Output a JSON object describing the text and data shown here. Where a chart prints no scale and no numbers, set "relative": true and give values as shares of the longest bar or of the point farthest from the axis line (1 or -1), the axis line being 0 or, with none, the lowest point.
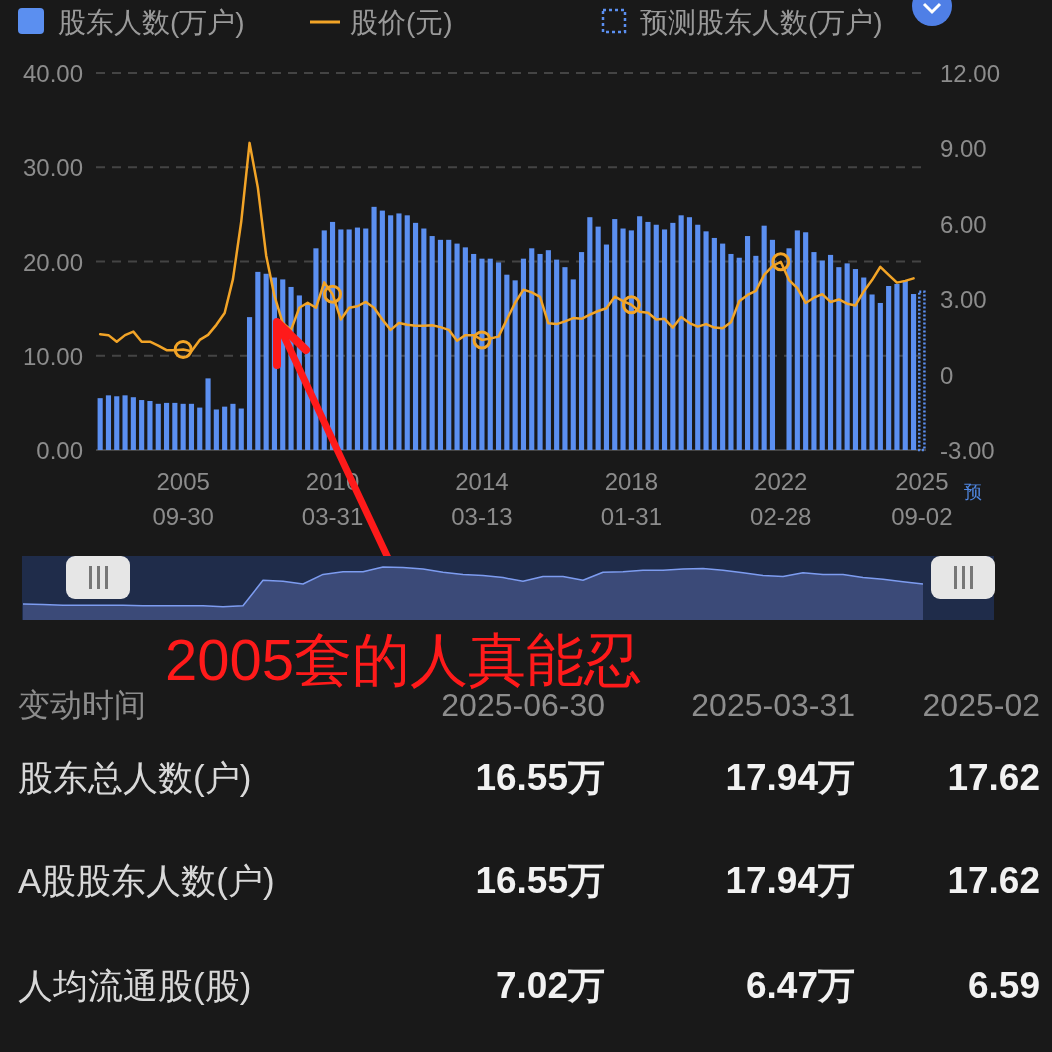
{
  "chart_data": [
    {
      "type": "bar",
      "legend": "top",
      "grid": "y",
      "categories": [
        null,
        null,
        null,
        null,
        null,
        null,
        null,
        null,
        null,
        null,
        "2005\n09-30",
        null,
        null,
        null,
        null,
        null,
        null,
        null,
        null,
        null,
        null,
        null,
        null,
        null,
        null,
        null,
        null,
        null,
        "2010\n03-31",
        null,
        null,
        null,
        null,
        null,
        null,
        null,
        null,
        null,
        null,
        null,
        null,
        null,
        null,
        null,
        null,
        null,
        "2014\n03-13",
        null,
        null,
        null,
        null,
        null,
        null,
        null,
        null,
        null,
        null,
        null,
        null,
        null,
        null,
        null,
        null,
        null,
        "2018\n01-31",
        null,
        null,
        null,
        null,
        null,
        null,
        null,
        null,
        null,
        null,
        null,
        null,
        null,
        null,
        null,
        null,
        null,
        "2022\n02-28",
        null,
        null,
        null,
        null,
        null,
        null,
        null,
        null,
        null,
        null,
        null,
        null,
        null,
        null,
        null,
        null,
        "2025\n09-02"
      ],
      "ylim": [
        0,
        40
      ],
      "yticks": [
        {
          "value": 0,
          "label": "0.00"
        },
        {
          "value": 10,
          "label": "10.00"
        },
        {
          "value": 20,
          "label": "20.00"
        },
        {
          "value": 30,
          "label": "30.00"
        },
        {
          "value": 40,
          "label": "40.00"
        }
      ],
      "y2lim": [
        -3,
        12
      ],
      "y2ticks": [
        {
          "value": -3,
          "label": "-3.00"
        },
        0,
        {
          "value": 3,
          "label": "3.00"
        },
        {
          "value": 6,
          "label": "6.00"
        },
        {
          "value": 9,
          "label": "9.00"
        },
        {
          "value": 12,
          "label": "12.00"
        }
      ],
      "series": [
        {
          "name": "股东人数(万户)",
          "type": "bar",
          "color": "#5b8ff0",
          "values": [
            5.5,
            5.8,
            5.7,
            5.8,
            5.6,
            5.3,
            5.2,
            4.9,
            5.0,
            5.0,
            4.9,
            4.9,
            4.5,
            7.6,
            4.3,
            4.6,
            4.9,
            4.4,
            14.1,
            18.9,
            18.7,
            18.3,
            18.1,
            17.3,
            16.4,
            15.5,
            21.4,
            23.3,
            24.2,
            23.4,
            23.4,
            23.6,
            23.5,
            25.8,
            25.4,
            24.9,
            25.1,
            24.9,
            24.1,
            23.5,
            22.7,
            22.3,
            22.3,
            21.9,
            21.5,
            20.8,
            20.3,
            20.3,
            19.9,
            18.6,
            18.0,
            20.3,
            21.4,
            20.8,
            21.2,
            20.2,
            19.4,
            18.1,
            21.0,
            24.7,
            23.7,
            21.8,
            24.5,
            23.5,
            23.3,
            24.8,
            24.2,
            23.9,
            23.4,
            24.1,
            24.9,
            24.7,
            23.9,
            23.2,
            22.5,
            21.9,
            20.8,
            20.4,
            22.7,
            20.6,
            23.8,
            22.3,
            null,
            21.4,
            23.3,
            23.1,
            21.0,
            20.1,
            20.7,
            19.4,
            19.8,
            19.2,
            18.3,
            16.5,
            15.6,
            17.4,
            17.62,
            17.94,
            16.55,
            null
          ]
        },
        {
          "name": "股价(元)",
          "type": "line",
          "axis": "y2",
          "color": "#f2a427",
          "values": [
            1.61,
            1.57,
            1.31,
            1.57,
            1.71,
            1.31,
            1.31,
            1.15,
            0.97,
            0.97,
            1.0,
            0.93,
            1.38,
            1.58,
            1.98,
            2.45,
            3.8,
            6.09,
            9.22,
            7.44,
            4.74,
            3.13,
            2.05,
            1.78,
            2.66,
            2.86,
            2.66,
            3.67,
            3.2,
            2.19,
            2.66,
            2.72,
            2.89,
            2.66,
            2.19,
            1.78,
            2.05,
            1.98,
            1.94,
            1.94,
            1.96,
            1.89,
            1.78,
            1.35,
            1.57,
            1.57,
            1.38,
            1.44,
            1.51,
            2.19,
            2.86,
            3.38,
            3.27,
            3.09,
            2.04,
            2.01,
            2.12,
            2.25,
            2.22,
            2.39,
            2.53,
            2.64,
            3.1,
            2.92,
            2.78,
            2.5,
            2.46,
            2.19,
            2.22,
            1.87,
            2.29,
            2.05,
            1.91,
            2.01,
            1.87,
            1.84,
            2.08,
            2.92,
            3.17,
            3.33,
            3.97,
            4.32,
            4.49,
            3.76,
            3.44,
            2.85,
            3.06,
            3.2,
            2.89,
            2.99,
            2.82,
            2.75,
            3.31,
            3.76,
            4.29,
            3.97,
            3.66,
            3.73,
            3.83,
            null
          ]
        },
        {
          "name": "预测股东人数(万户)",
          "type": "bar",
          "line_style": "dotted",
          "color": "#5b8ff0",
          "x": [
            "2025\n09-02"
          ],
          "values": [
            16.8
          ]
        },
        {
          "type": "scatter",
          "axis": "y2",
          "marker": "circle",
          "color": "#f2a427",
          "x": [
            "2005\n09-30",
            "2010\n03-31",
            "2014\n03-13",
            "2018\n01-31",
            "2022\n02-28"
          ],
          "values": [
            1.0,
            3.2,
            1.38,
            2.78,
            4.49
          ]
        }
      ],
      "annotations": [
        "预",
        "2005套的人真能忍"
      ]
    },
    {
      "type": "area",
      "relative": true,
      "color": "#7d9cf0",
      "categories": [
        null,
        null,
        null,
        null,
        null,
        null,
        null,
        null,
        null,
        null,
        null,
        null,
        null,
        null,
        null,
        null,
        null,
        null,
        null,
        null,
        null,
        null,
        null,
        null,
        null,
        null,
        null,
        null,
        null,
        null,
        null,
        null,
        null,
        null,
        null,
        null,
        null,
        null,
        null,
        null,
        null,
        null,
        null,
        null,
        null,
        null
      ],
      "values": [
        0.3,
        0.29,
        0.28,
        0.28,
        0.28,
        0.28,
        0.27,
        0.27,
        0.27,
        0.27,
        0.25,
        0.27,
        0.75,
        0.73,
        0.68,
        0.86,
        0.91,
        0.91,
        1,
        0.99,
        0.96,
        0.9,
        0.86,
        0.84,
        0.8,
        0.73,
        0.82,
        0.82,
        0.75,
        0.9,
        0.91,
        0.94,
        0.94,
        0.96,
        0.97,
        0.94,
        0.89,
        0.84,
        0.82,
        0.89,
        0.86,
        0.86,
        0.8,
        0.77,
        0.72,
        0.68
      ]
    },
    {
      "type": "other",
      "xlabel": "变动时间",
      "categories": [
        "2025-06-30",
        "2025-03-31",
        "2025-02"
      ],
      "y_categories": [
        "股东总人数(户)",
        "A股股东人数(户)",
        "人均流通股(股)"
      ],
      "cell_labels": [
        [
          "16.55万",
          "17.94万",
          "17.62"
        ],
        [
          "16.55万",
          "17.94万",
          "17.62"
        ],
        [
          "7.02万",
          "6.47万",
          "6.59"
        ]
      ]
    }
  ]
}
